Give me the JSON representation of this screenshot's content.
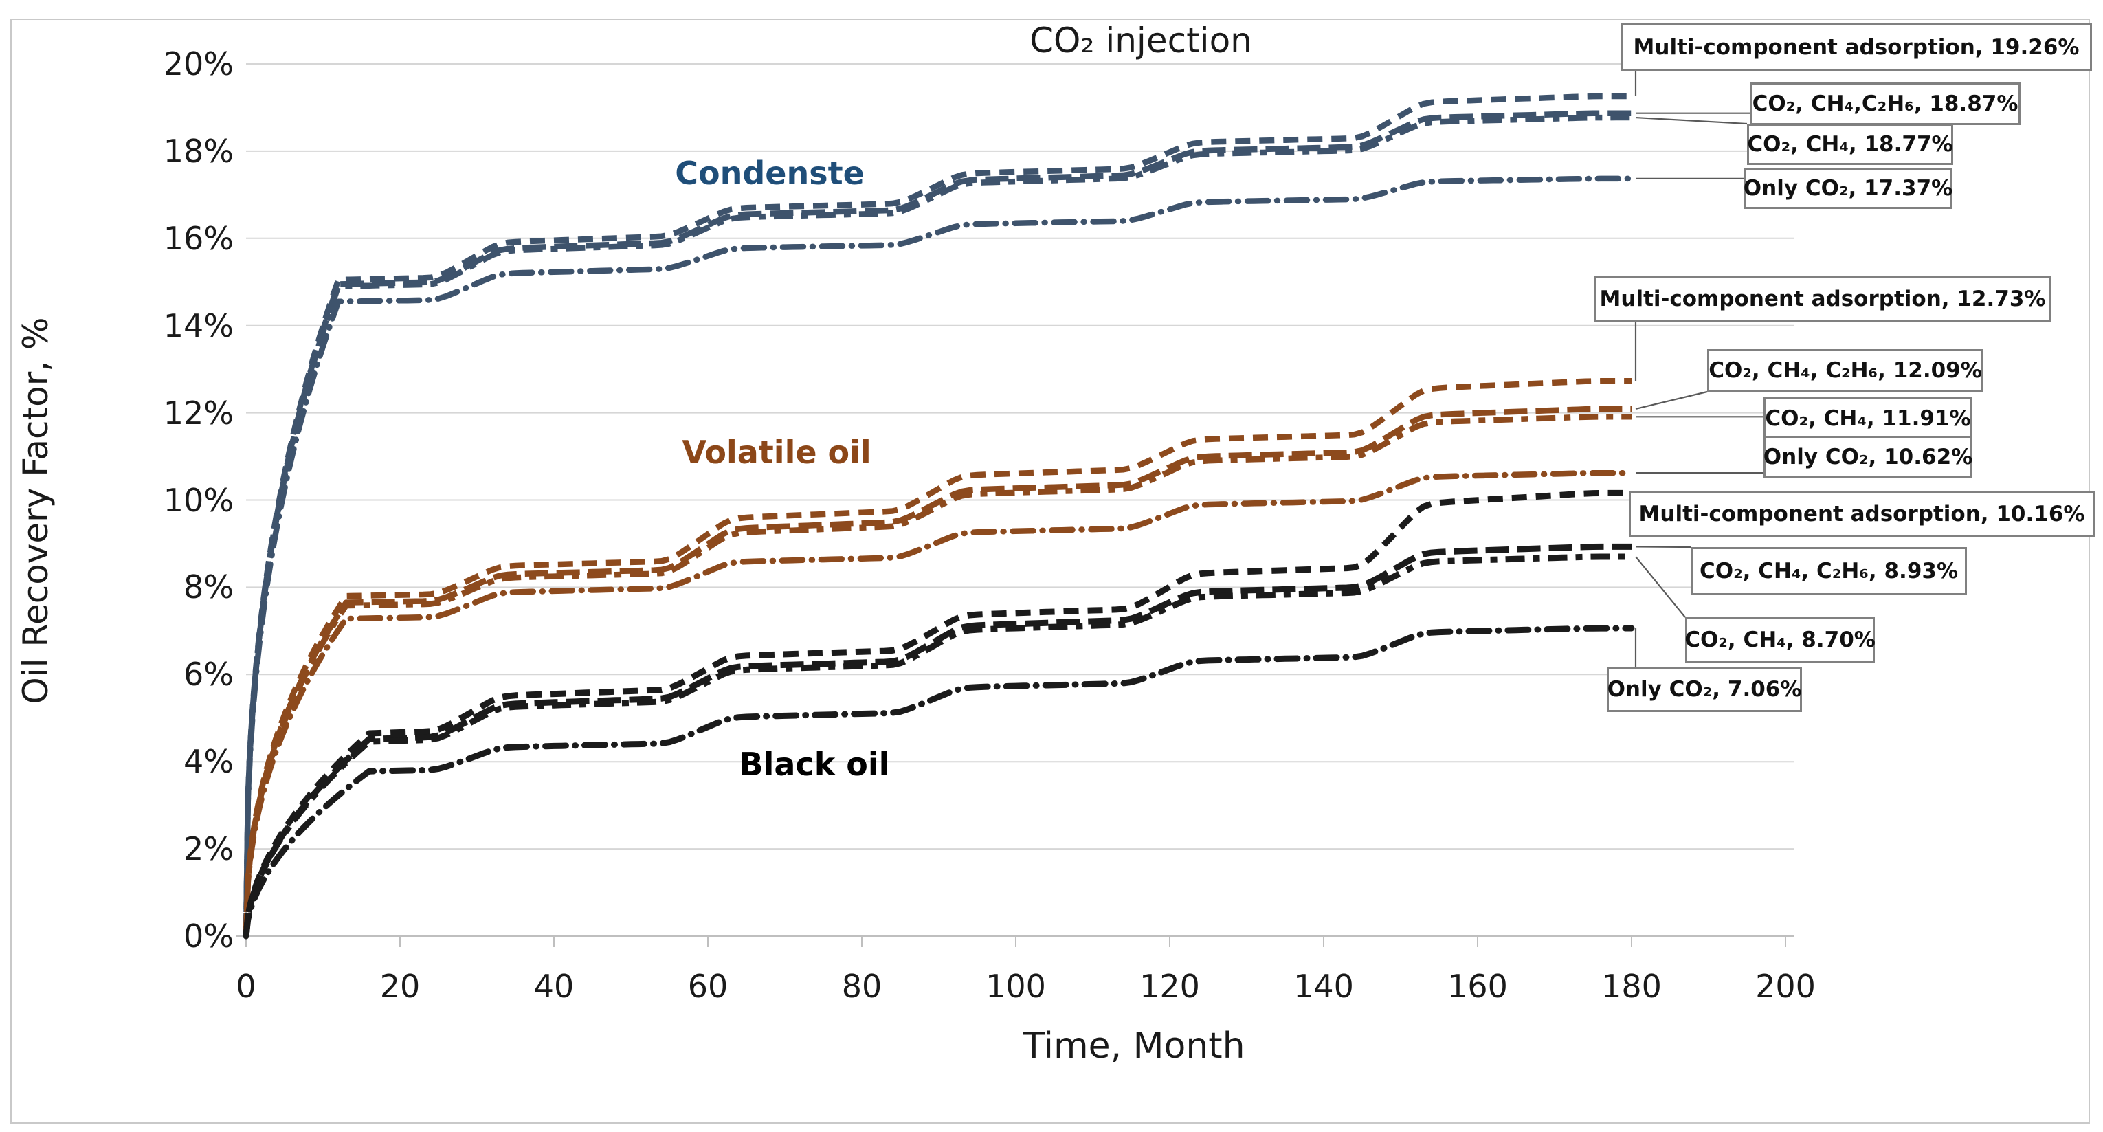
{
  "chart_data": {
    "type": "line",
    "title": "CO₂ injection",
    "xlabel": "Time, Month",
    "ylabel": "Oil Recovery Factor, %",
    "xlim": [
      0,
      200
    ],
    "ylim_pct": [
      0,
      20
    ],
    "x_ticks": [
      0,
      20,
      40,
      60,
      80,
      100,
      120,
      140,
      160,
      180,
      200
    ],
    "y_tick_labels": [
      "0%",
      "2%",
      "4%",
      "6%",
      "8%",
      "10%",
      "12%",
      "14%",
      "16%",
      "18%",
      "20%"
    ],
    "grid": "horizontal-gridlines-on",
    "legend_position": "callout-boxes-right",
    "end_month": 180,
    "injection_cycle_start_months": [
      25,
      55,
      85,
      115,
      145
    ],
    "plateau_note": "plateaus_pct = recovery % after initial rise then after each of 5 CO2 injection cycles; curves end at month 180 at final_pct",
    "colors": {
      "gridline": "#d6d6d6",
      "axis_line": "#bfbfbf",
      "figure_border": "#c9c9c9",
      "annotation_border": "#808080",
      "leader_line": "#595959"
    },
    "groups": [
      {
        "name": "Condenste",
        "label_color": "#1F4E79",
        "line_color": "#3E536C",
        "series": [
          {
            "name": "Multi-component adsorption",
            "annotation": "Multi-component adsorption, 19.26%",
            "final_pct": 19.26,
            "line_style": "dash",
            "rise_months": 12,
            "rise_exp": 0.4,
            "plateaus_pct": [
              15.05,
              16.05,
              16.8,
              17.6,
              18.3,
              19.26
            ]
          },
          {
            "name": "CO₂, CH₄, C₂H₆",
            "annotation": "CO₂, CH₄,C₂H₆, 18.87%",
            "final_pct": 18.87,
            "line_style": "long-dash",
            "rise_months": 12,
            "rise_exp": 0.4,
            "plateaus_pct": [
              14.95,
              15.9,
              16.65,
              17.45,
              18.1,
              18.87
            ]
          },
          {
            "name": "CO₂, CH₄",
            "annotation": "CO₂, CH₄, 18.77%",
            "final_pct": 18.77,
            "line_style": "long-dash-dot",
            "rise_months": 12,
            "rise_exp": 0.4,
            "plateaus_pct": [
              14.9,
              15.85,
              16.58,
              17.38,
              18.02,
              18.77
            ]
          },
          {
            "name": "Only CO₂",
            "annotation": "Only CO₂, 17.37%",
            "final_pct": 17.37,
            "line_style": "dash-dot",
            "rise_months": 12,
            "rise_exp": 0.4,
            "plateaus_pct": [
              14.55,
              15.3,
              15.85,
              16.4,
              16.9,
              17.37
            ]
          }
        ]
      },
      {
        "name": "Volatile oil",
        "label_color": "#8C4718",
        "line_color": "#8D4A1D",
        "series": [
          {
            "name": "Multi-component adsorption",
            "annotation": "Multi-component adsorption, 12.73%",
            "final_pct": 12.73,
            "line_style": "dash",
            "rise_months": 13,
            "rise_exp": 0.45,
            "plateaus_pct": [
              7.8,
              8.6,
              9.75,
              10.7,
              11.5,
              12.73
            ]
          },
          {
            "name": "CO₂, CH₄, C₂H₆",
            "annotation": "CO₂, CH₄, C₂H₆, 12.09%",
            "final_pct": 12.09,
            "line_style": "long-dash",
            "rise_months": 13,
            "rise_exp": 0.45,
            "plateaus_pct": [
              7.65,
              8.4,
              9.5,
              10.35,
              11.1,
              12.09
            ]
          },
          {
            "name": "CO₂, CH₄",
            "annotation": "CO₂, CH₄, 11.91%",
            "final_pct": 11.91,
            "line_style": "long-dash-dot",
            "rise_months": 13,
            "rise_exp": 0.45,
            "plateaus_pct": [
              7.58,
              8.32,
              9.4,
              10.25,
              11.0,
              11.91
            ]
          },
          {
            "name": "Only CO₂",
            "annotation": "Only CO₂, 10.62%",
            "final_pct": 10.62,
            "line_style": "dash-dot",
            "rise_months": 13,
            "rise_exp": 0.45,
            "plateaus_pct": [
              7.28,
              7.98,
              8.68,
              9.35,
              9.98,
              10.62
            ]
          }
        ]
      },
      {
        "name": "Black oil",
        "label_color": "#000000",
        "line_color": "#1b1b1b",
        "series": [
          {
            "name": "Multi-component adsorption",
            "annotation": "Multi-component adsorption, 10.16%",
            "final_pct": 10.16,
            "line_style": "dash",
            "rise_months": 16,
            "rise_exp": 0.55,
            "plateaus_pct": [
              4.65,
              5.65,
              6.55,
              7.5,
              8.45,
              10.16
            ]
          },
          {
            "name": "CO₂, CH₄, C₂H₆",
            "annotation": "CO₂, CH₄, C₂H₆, 8.93%",
            "final_pct": 8.93,
            "line_style": "long-dash",
            "rise_months": 16,
            "rise_exp": 0.55,
            "plateaus_pct": [
              4.52,
              5.45,
              6.3,
              7.25,
              8.0,
              8.93
            ]
          },
          {
            "name": "CO₂, CH₄",
            "annotation": "CO₂, CH₄, 8.70%",
            "final_pct": 8.7,
            "line_style": "long-dash-dot",
            "rise_months": 16,
            "rise_exp": 0.55,
            "plateaus_pct": [
              4.46,
              5.38,
              6.22,
              7.15,
              7.88,
              8.7
            ]
          },
          {
            "name": "Only CO₂",
            "annotation": "Only CO₂, 7.06%",
            "final_pct": 7.06,
            "line_style": "dash-dot",
            "rise_months": 16,
            "rise_exp": 0.55,
            "plateaus_pct": [
              3.78,
              4.42,
              5.12,
              5.8,
              6.4,
              7.06
            ]
          }
        ]
      }
    ]
  }
}
